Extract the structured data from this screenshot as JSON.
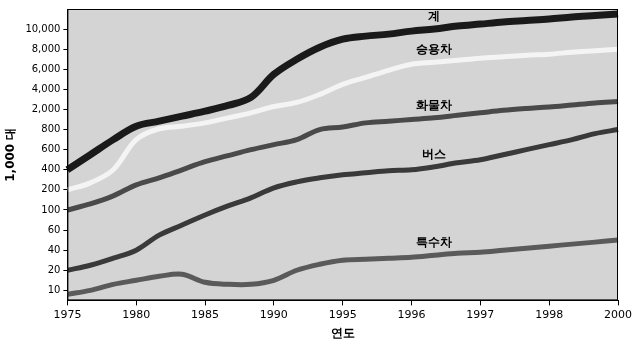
{
  "chart_data": {
    "type": "line",
    "x_label": "연도",
    "y_label": "1,000 대",
    "categories": [
      "1975",
      null,
      null,
      "1980",
      null,
      null,
      "1985",
      null,
      null,
      "1990",
      null,
      null,
      "1995",
      null,
      null,
      "1996",
      null,
      null,
      "1997",
      null,
      null,
      "1998",
      null,
      null,
      "2000"
    ],
    "series": [
      {
        "name": "계",
        "color": "#1a1a1a",
        "values": [
          400,
          550,
          700,
          1000,
          1300,
          1600,
          1900,
          2400,
          3200,
          5500,
          7000,
          8200,
          9000,
          9300,
          9500,
          9800,
          10000,
          10300,
          10500,
          10700,
          10850,
          11000,
          11200,
          11350,
          11500
        ]
      },
      {
        "name": "승용차",
        "color": "#f4f4f4",
        "values": [
          200,
          270,
          400,
          700,
          850,
          1000,
          1200,
          1500,
          1800,
          2300,
          2700,
          3500,
          4500,
          5200,
          5900,
          6500,
          6700,
          6900,
          7100,
          7250,
          7400,
          7500,
          7700,
          7850,
          8000
        ]
      },
      {
        "name": "화물차",
        "color": "#4a4a4a",
        "values": [
          100,
          130,
          170,
          250,
          320,
          400,
          480,
          540,
          600,
          650,
          700,
          800,
          950,
          1200,
          1300,
          1400,
          1500,
          1650,
          1800,
          1950,
          2100,
          2250,
          2450,
          2650,
          2800
        ]
      },
      {
        "name": "버스",
        "color": "#3a3a3a",
        "values": [
          20,
          25,
          32,
          40,
          55,
          70,
          90,
          120,
          160,
          220,
          280,
          320,
          350,
          370,
          390,
          400,
          430,
          470,
          500,
          550,
          600,
          650,
          700,
          760,
          800
        ]
      },
      {
        "name": "특수차",
        "color": "#5a5a5a",
        "values": [
          8,
          10,
          13,
          15,
          17,
          18,
          14,
          13,
          13,
          15,
          20,
          26,
          30,
          31,
          32,
          33,
          35,
          37,
          38,
          40,
          42,
          44,
          46,
          48,
          50
        ]
      }
    ],
    "ylim": [
      5,
      12000
    ],
    "yticks": [
      10,
      20,
      40,
      60,
      100,
      200,
      400,
      600,
      800,
      {
        "value": 2000,
        "label": "2,000"
      },
      {
        "value": 4000,
        "label": "4,000"
      },
      {
        "value": 6000,
        "label": "6,000"
      },
      {
        "value": 8000,
        "label": "8,000"
      },
      {
        "value": 10000,
        "label": "10,000"
      }
    ],
    "grid": false
  }
}
